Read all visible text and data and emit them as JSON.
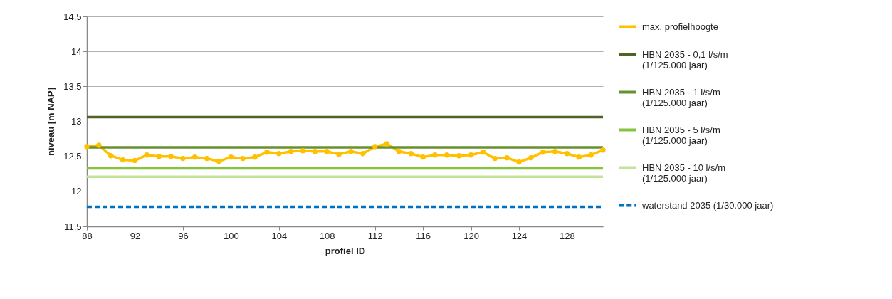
{
  "chart_data": {
    "type": "line",
    "xlabel": "profiel ID",
    "ylabel": "niveau [m NAP]",
    "xlim": [
      88,
      131
    ],
    "xticks": [
      88,
      92,
      96,
      100,
      104,
      108,
      112,
      116,
      120,
      124,
      128
    ],
    "ylim": [
      11.5,
      14.5
    ],
    "yticks": [
      {
        "value": 11.5,
        "label": "11,5"
      },
      12,
      {
        "value": 12.5,
        "label": "12,5"
      },
      13,
      {
        "value": 13.5,
        "label": "13,5"
      },
      14,
      {
        "value": 14.5,
        "label": "14,5"
      }
    ],
    "grid": "y",
    "legend": "right",
    "series": [
      {
        "name": "max. profielhoogte",
        "color": "#ffc000",
        "marker": "circle",
        "line_style": "solid",
        "x": [
          88,
          89,
          90,
          91,
          92,
          93,
          94,
          95,
          96,
          97,
          98,
          99,
          100,
          101,
          102,
          103,
          104,
          105,
          106,
          107,
          108,
          109,
          110,
          111,
          112,
          113,
          114,
          115,
          116,
          117,
          118,
          119,
          120,
          121,
          122,
          123,
          124,
          125,
          126,
          127,
          128,
          129,
          130,
          131
        ],
        "values": [
          12.64,
          12.66,
          12.51,
          12.45,
          12.44,
          12.52,
          12.5,
          12.5,
          12.47,
          12.49,
          12.47,
          12.43,
          12.49,
          12.47,
          12.49,
          12.56,
          12.54,
          12.57,
          12.58,
          12.57,
          12.57,
          12.53,
          12.57,
          12.54,
          12.64,
          12.68,
          12.57,
          12.54,
          12.49,
          12.52,
          12.52,
          12.51,
          12.52,
          12.56,
          12.47,
          12.48,
          12.42,
          12.48,
          12.56,
          12.57,
          12.54,
          12.49,
          12.52,
          12.59
        ]
      },
      {
        "name": "HBN 2035 - 0,1 l/s/m\n(1/125.000 jaar)",
        "color": "#4f6228",
        "marker": "none",
        "line_style": "solid",
        "x": [
          88,
          131
        ],
        "values": [
          13.06,
          13.06
        ]
      },
      {
        "name": "HBN 2035 - 1 l/s/m\n(1/125.000 jaar)",
        "color": "#679130",
        "marker": "none",
        "line_style": "solid",
        "x": [
          88,
          131
        ],
        "values": [
          12.63,
          12.63
        ]
      },
      {
        "name": "HBN 2035 - 5 l/s/m\n(1/125.000 jaar)",
        "color": "#86c440",
        "marker": "none",
        "line_style": "solid",
        "x": [
          88,
          131
        ],
        "values": [
          12.33,
          12.33
        ]
      },
      {
        "name": "HBN 2035 - 10 l/s/m\n(1/125.000 jaar)",
        "color": "#c3e29c",
        "marker": "none",
        "line_style": "solid",
        "x": [
          88,
          131
        ],
        "values": [
          12.21,
          12.21
        ]
      },
      {
        "name": "waterstand 2035 (1/30.000 jaar)",
        "color": "#0070c0",
        "marker": "none",
        "line_style": "dashed",
        "x": [
          88,
          131
        ],
        "values": [
          11.78,
          11.78
        ]
      }
    ]
  }
}
